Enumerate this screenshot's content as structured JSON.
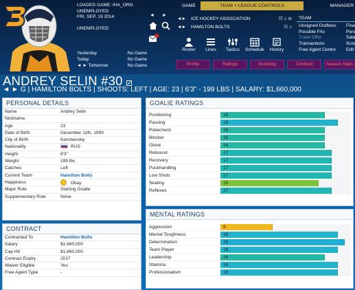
{
  "header": {
    "loaded_game": "LOADED GAME:  IHA_ORG",
    "status": "UNEMPLOYED",
    "date": "FRI. SEP. 19 2014",
    "employment": "UNEMPLOYED"
  },
  "tabs": [
    {
      "label": "GAME",
      "active": false
    },
    {
      "label": "TEAM + LEAGUE CONTROLS",
      "active": true
    },
    {
      "label": "MANAGER",
      "active": false
    }
  ],
  "schedule": [
    {
      "day": "Yesterday",
      "result": "No Game"
    },
    {
      "day": "Today",
      "result": "No Game"
    },
    {
      "day": "◄ ► Tomorrow",
      "result": "No Game"
    }
  ],
  "league_controls": [
    {
      "label": "ICE HOCKEY ASSOCIATION"
    },
    {
      "label": "HAMILTON BOLTS"
    }
  ],
  "toolbar": [
    {
      "label": "Roster",
      "icon": "roster-icon"
    },
    {
      "label": "Lines",
      "icon": "lines-icon"
    },
    {
      "label": "Tactics",
      "icon": "tactics-icon"
    },
    {
      "label": "Schedule",
      "icon": "schedule-icon"
    },
    {
      "label": "History",
      "icon": "history-icon"
    }
  ],
  "team_menu": {
    "header": "TEAM",
    "items": [
      {
        "label": "Unsigned Draftees",
        "disabled": false
      },
      {
        "label": "Possible FAs",
        "disabled": false
      },
      {
        "label": "Trade Offer",
        "disabled": true
      },
      {
        "label": "Transactions",
        "disabled": false
      },
      {
        "label": "Free Agent Centre",
        "disabled": false
      }
    ],
    "second_column": [
      "Fina",
      "Pers",
      "Sala",
      "Scou",
      "Edit"
    ]
  },
  "nav_tabs": [
    "Profile",
    "Ratings",
    "Scouting",
    "Contract",
    "Season Stats"
  ],
  "player": {
    "name": "ANDREY SELIN #30",
    "meta": "◄ ► G | HAMILTON BOLTS | SHOOTS: LEFT | AGE: 23 | 6'3\" - 199 LBS | SALARY: $1,660,000"
  },
  "personal_details": {
    "title": "PERSONAL DETAILS",
    "rows": [
      {
        "label": "Name",
        "value": "Andrey Selin"
      },
      {
        "label": "Nickname",
        "value": ""
      },
      {
        "label": "Age",
        "value": "23"
      },
      {
        "label": "Date of Birth",
        "value": "December 11th, 1990"
      },
      {
        "label": "City of Birth",
        "value": "Kerchevskiy"
      },
      {
        "label": "Nationality",
        "value": "RUS"
      },
      {
        "label": "Height",
        "value": "6'3\""
      },
      {
        "label": "Weight",
        "value": "199 lbs"
      },
      {
        "label": "Catches",
        "value": "Left"
      },
      {
        "label": "Current Team",
        "value": "Hamilton Bolts"
      },
      {
        "label": "Happiness",
        "value": "Okay"
      },
      {
        "label": "Major Role",
        "value": "Starting Goalie"
      },
      {
        "label": "Supplementary Role",
        "value": "None"
      }
    ]
  },
  "contract": {
    "title": "CONTRACT",
    "rows": [
      {
        "label": "Contracted To",
        "value": "Hamilton Bolts"
      },
      {
        "label": "Salary",
        "value": "$1,660,000"
      },
      {
        "label": "Cap Hit",
        "value": "$1,660,000"
      },
      {
        "label": "Contract Expiry",
        "value": "2017"
      },
      {
        "label": "Waiver Eligible",
        "value": "Yes"
      },
      {
        "label": "Free Agent Type",
        "value": "-"
      }
    ]
  },
  "goalie_ratings": {
    "title": "GOALIE RATINGS",
    "max": 20,
    "rows": [
      {
        "label": "Positioning",
        "value": 16,
        "color": "#23b9a6"
      },
      {
        "label": "Passing",
        "value": 18,
        "color": "#22b3cc"
      },
      {
        "label": "Pokecheck",
        "value": 16,
        "color": "#23b9a6"
      },
      {
        "label": "Blocker",
        "value": 16,
        "color": "#23b9a6"
      },
      {
        "label": "Glove",
        "value": 16,
        "color": "#23b9a6"
      },
      {
        "label": "Rebound",
        "value": 17,
        "color": "#20b7b5"
      },
      {
        "label": "Recovery",
        "value": 17,
        "color": "#20b7b5"
      },
      {
        "label": "Puckhandling",
        "value": 17,
        "color": "#20b7b5"
      },
      {
        "label": "Low Shots",
        "value": 17,
        "color": "#20b7b5"
      },
      {
        "label": "Skating",
        "value": 15,
        "color": "#7cc43a"
      },
      {
        "label": "Reflexes",
        "value": 17,
        "color": "#20b7b5"
      }
    ]
  },
  "mental_ratings": {
    "title": "MENTAL RATINGS",
    "max": 20,
    "rows": [
      {
        "label": "Aggression",
        "value": 8,
        "color": "#f0b81a"
      },
      {
        "label": "Mental Toughness",
        "value": 18,
        "color": "#22b3cc"
      },
      {
        "label": "Determination",
        "value": 19,
        "color": "#1eaed6"
      },
      {
        "label": "Team Player",
        "value": 18,
        "color": "#22b3cc"
      },
      {
        "label": "Leadership",
        "value": 16,
        "color": "#23b9a6"
      },
      {
        "label": "Stamina",
        "value": 18,
        "color": "#22b3cc"
      },
      {
        "label": "Professionalism",
        "value": 18,
        "color": "#22b3cc"
      }
    ]
  }
}
